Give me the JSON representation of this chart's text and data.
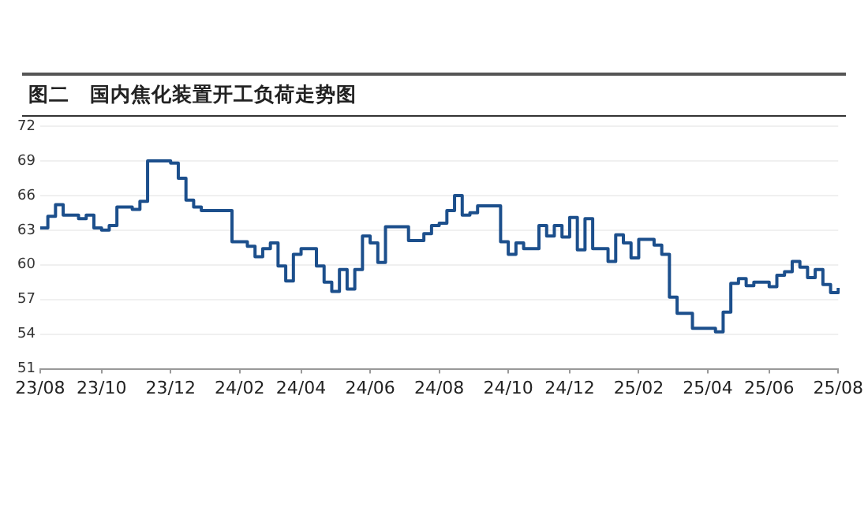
{
  "chart_data": {
    "type": "step",
    "title": "图二　国内焦化装置开工负荷走势图",
    "categories": [
      "23/08",
      null,
      null,
      null,
      null,
      null,
      null,
      null,
      "23/10",
      null,
      null,
      null,
      null,
      null,
      null,
      null,
      null,
      "23/12",
      null,
      null,
      null,
      null,
      null,
      null,
      null,
      null,
      "24/02",
      null,
      null,
      null,
      null,
      null,
      null,
      null,
      "24/04",
      null,
      null,
      null,
      null,
      null,
      null,
      null,
      null,
      "24/06",
      null,
      null,
      null,
      null,
      null,
      null,
      null,
      null,
      "24/08",
      null,
      null,
      null,
      null,
      null,
      null,
      null,
      null,
      "24/10",
      null,
      null,
      null,
      null,
      null,
      null,
      null,
      "24/12",
      null,
      null,
      null,
      null,
      null,
      null,
      null,
      null,
      "25/02",
      null,
      null,
      null,
      null,
      null,
      null,
      null,
      null,
      "25/04",
      null,
      null,
      null,
      null,
      null,
      null,
      null,
      "25/06",
      null,
      null,
      null,
      null,
      null,
      null,
      null,
      null,
      "25/08"
    ],
    "series": [
      {
        "color": "#1c4f8c",
        "values": [
          63.2,
          64.2,
          65.2,
          64.3,
          64.3,
          64.0,
          64.3,
          63.2,
          63.0,
          63.4,
          65.0,
          65.0,
          64.8,
          65.5,
          69.0,
          69.0,
          69.0,
          68.8,
          67.5,
          65.6,
          65.0,
          64.7,
          64.7,
          64.7,
          64.7,
          62.0,
          62.0,
          61.6,
          60.7,
          61.4,
          61.9,
          59.9,
          58.6,
          60.9,
          61.4,
          61.4,
          59.9,
          58.5,
          57.7,
          59.6,
          57.9,
          59.6,
          62.5,
          61.9,
          60.2,
          63.3,
          63.3,
          63.3,
          62.1,
          62.1,
          62.7,
          63.4,
          63.6,
          64.7,
          66.0,
          64.3,
          64.5,
          65.1,
          65.1,
          65.1,
          62.0,
          60.9,
          61.9,
          61.4,
          61.4,
          63.4,
          62.5,
          63.4,
          62.4,
          64.1,
          61.3,
          64.0,
          61.4,
          61.4,
          60.3,
          62.6,
          61.9,
          60.6,
          62.2,
          62.2,
          61.7,
          60.9,
          57.2,
          55.8,
          55.8,
          54.5,
          54.5,
          54.5,
          54.2,
          55.9,
          58.4,
          58.8,
          58.2,
          58.5,
          58.5,
          58.1,
          59.1,
          59.4,
          60.3,
          59.8,
          58.9,
          59.6,
          58.3,
          57.6,
          58.0
        ]
      }
    ],
    "ylim": [
      51,
      72
    ],
    "yticks": [
      51,
      54,
      57,
      60,
      63,
      66,
      69,
      72
    ],
    "grid": "y",
    "legend": false,
    "marker": "none",
    "line_style": "solid"
  }
}
